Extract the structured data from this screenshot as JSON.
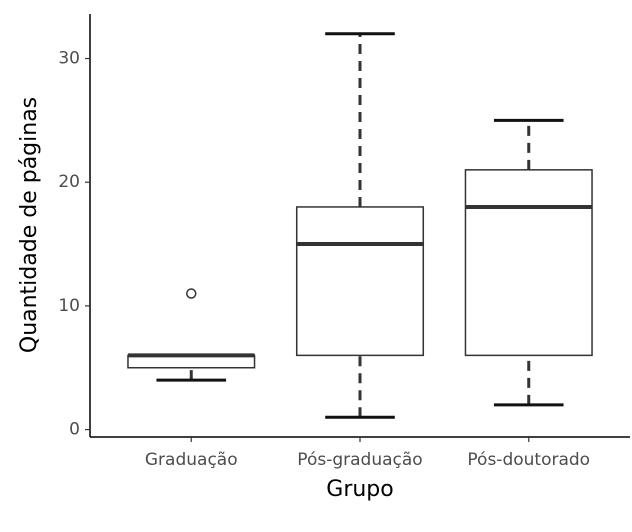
{
  "chart_data": {
    "type": "boxplot",
    "x_label": "Grupo",
    "y_label": "Quantidade de páginas",
    "categories": [
      "Graduação",
      "Pós-graduação",
      "Pós-doutorado"
    ],
    "whisker_low": [
      4,
      1,
      2
    ],
    "q1": [
      5,
      6,
      6
    ],
    "median": [
      6,
      15,
      18
    ],
    "q3": [
      6,
      18,
      21
    ],
    "whisker_high": [
      6,
      32,
      25
    ],
    "outliers": [
      [
        11
      ],
      [],
      []
    ],
    "ylim": [
      -0.6,
      33.6
    ],
    "yticks": [
      0,
      10,
      20,
      30
    ]
  }
}
